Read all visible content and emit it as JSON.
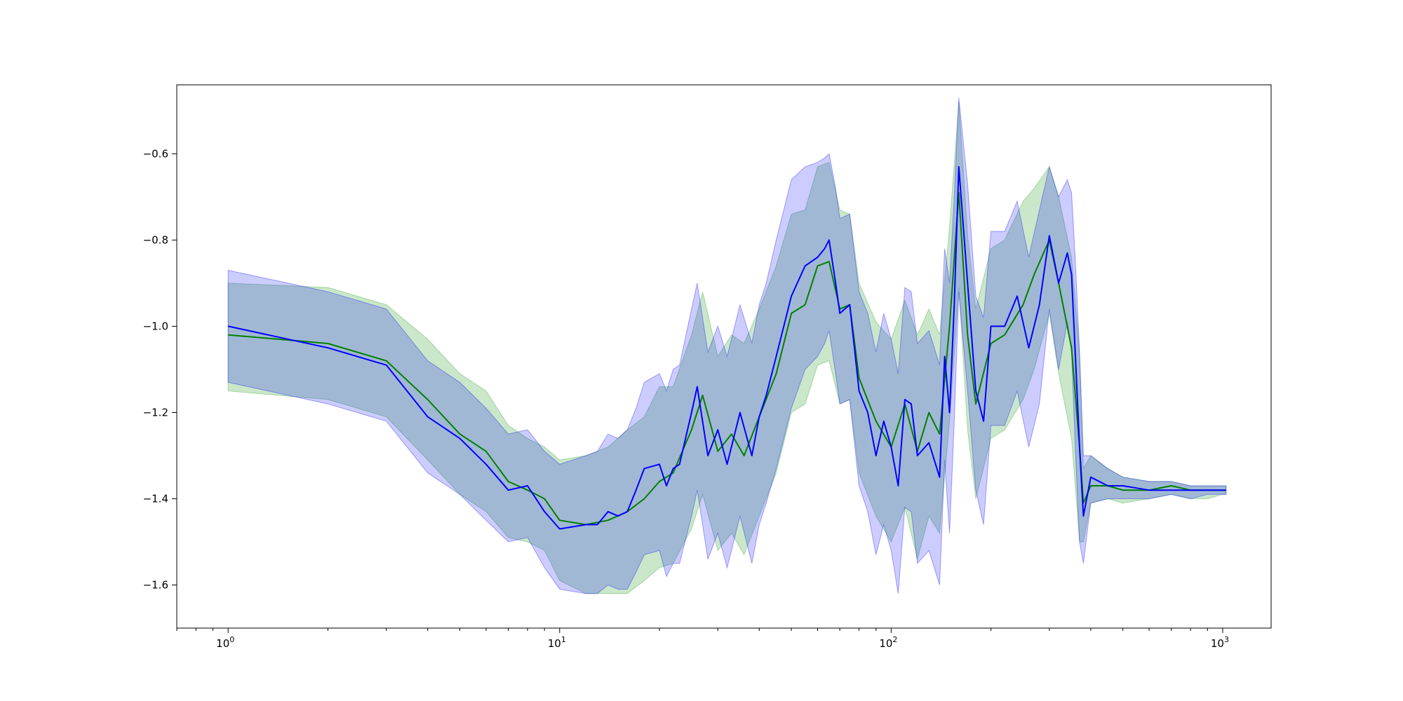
{
  "chart_data": {
    "type": "line",
    "title": "",
    "xlabel": "",
    "ylabel": "",
    "xscale": "log",
    "xlim": [
      0.7,
      1400
    ],
    "ylim": [
      -1.7,
      -0.44
    ],
    "grid": false,
    "legend": "none",
    "x_ticks": [
      {
        "value": 1,
        "base": "10",
        "exp": "0"
      },
      {
        "value": 10,
        "base": "10",
        "exp": "1"
      },
      {
        "value": 100,
        "base": "10",
        "exp": "2"
      },
      {
        "value": 1000,
        "base": "10",
        "exp": "3"
      }
    ],
    "y_ticks": [
      {
        "value": -1.6,
        "label": "−1.6"
      },
      {
        "value": -1.4,
        "label": "−1.4"
      },
      {
        "value": -1.2,
        "label": "−1.2"
      },
      {
        "value": -1.0,
        "label": "−1.0"
      },
      {
        "value": -0.8,
        "label": "−0.8"
      },
      {
        "value": -0.6,
        "label": "−0.6"
      }
    ],
    "series": [
      {
        "line_color": "#008000",
        "band_color": "#2ca02c",
        "band_opacity": 0.25,
        "x": [
          1,
          2,
          3,
          4,
          5,
          6,
          7,
          8,
          9,
          10,
          12,
          14,
          16,
          18,
          20,
          22,
          25,
          27,
          30,
          33,
          36,
          40,
          45,
          50,
          55,
          60,
          65,
          70,
          75,
          80,
          90,
          100,
          110,
          120,
          130,
          140,
          150,
          160,
          170,
          180,
          200,
          220,
          250,
          270,
          300,
          320,
          350,
          370,
          380,
          400,
          450,
          500,
          600,
          700,
          800,
          900,
          1000,
          1024
        ],
        "y": [
          -1.02,
          -1.04,
          -1.08,
          -1.17,
          -1.25,
          -1.29,
          -1.36,
          -1.38,
          -1.4,
          -1.45,
          -1.46,
          -1.45,
          -1.43,
          -1.4,
          -1.36,
          -1.34,
          -1.24,
          -1.16,
          -1.29,
          -1.25,
          -1.3,
          -1.21,
          -1.11,
          -0.97,
          -0.95,
          -0.86,
          -0.85,
          -0.96,
          -0.95,
          -1.12,
          -1.22,
          -1.28,
          -1.18,
          -1.29,
          -1.2,
          -1.25,
          -1.0,
          -0.69,
          -1.02,
          -1.18,
          -1.04,
          -1.02,
          -0.95,
          -0.88,
          -0.8,
          -0.9,
          -1.05,
          -1.28,
          -1.41,
          -1.37,
          -1.37,
          -1.38,
          -1.38,
          -1.37,
          -1.38,
          -1.38,
          -1.38,
          -1.38
        ],
        "upper": [
          -0.9,
          -0.91,
          -0.95,
          -1.03,
          -1.11,
          -1.15,
          -1.23,
          -1.26,
          -1.28,
          -1.31,
          -1.3,
          -1.28,
          -1.24,
          -1.21,
          -1.14,
          -1.14,
          -1.02,
          -0.92,
          -1.07,
          -1.02,
          -1.04,
          -0.96,
          -0.86,
          -0.74,
          -0.73,
          -0.63,
          -0.62,
          -0.73,
          -0.74,
          -0.9,
          -0.99,
          -1.03,
          -0.94,
          -1.02,
          -0.96,
          -1.02,
          -0.77,
          -0.48,
          -0.79,
          -0.96,
          -0.82,
          -0.8,
          -0.71,
          -0.68,
          -0.63,
          -0.7,
          -0.84,
          -1.06,
          -1.33,
          -1.3,
          -1.33,
          -1.35,
          -1.36,
          -1.36,
          -1.37,
          -1.37,
          -1.37,
          -1.37
        ],
        "lower": [
          -1.15,
          -1.17,
          -1.21,
          -1.31,
          -1.39,
          -1.43,
          -1.49,
          -1.5,
          -1.52,
          -1.59,
          -1.62,
          -1.62,
          -1.62,
          -1.59,
          -1.56,
          -1.55,
          -1.47,
          -1.39,
          -1.52,
          -1.48,
          -1.53,
          -1.44,
          -1.34,
          -1.2,
          -1.18,
          -1.09,
          -1.08,
          -1.18,
          -1.17,
          -1.34,
          -1.44,
          -1.5,
          -1.42,
          -1.54,
          -1.44,
          -1.48,
          -1.22,
          -0.91,
          -1.24,
          -1.4,
          -1.26,
          -1.24,
          -1.17,
          -1.1,
          -0.97,
          -1.11,
          -1.26,
          -1.5,
          -1.5,
          -1.41,
          -1.4,
          -1.41,
          -1.4,
          -1.39,
          -1.4,
          -1.4,
          -1.39,
          -1.39
        ]
      },
      {
        "line_color": "#0000ff",
        "band_color": "#0000ff",
        "band_opacity": 0.2,
        "x": [
          1,
          2,
          3,
          4,
          5,
          6,
          7,
          8,
          9,
          10,
          12,
          13,
          14,
          15,
          16,
          17,
          18,
          20,
          21,
          22,
          23,
          25,
          26,
          28,
          30,
          32,
          35,
          38,
          40,
          42,
          45,
          50,
          55,
          60,
          63,
          65,
          68,
          70,
          75,
          80,
          85,
          90,
          95,
          100,
          105,
          110,
          115,
          120,
          130,
          140,
          145,
          150,
          155,
          160,
          170,
          180,
          190,
          200,
          220,
          240,
          260,
          280,
          300,
          320,
          340,
          350,
          360,
          370,
          380,
          400,
          450,
          500,
          600,
          700,
          800,
          900,
          1000,
          1024
        ],
        "y": [
          -1.0,
          -1.05,
          -1.09,
          -1.21,
          -1.26,
          -1.32,
          -1.38,
          -1.37,
          -1.43,
          -1.47,
          -1.46,
          -1.46,
          -1.43,
          -1.44,
          -1.43,
          -1.38,
          -1.33,
          -1.32,
          -1.37,
          -1.33,
          -1.32,
          -1.2,
          -1.14,
          -1.3,
          -1.24,
          -1.32,
          -1.2,
          -1.3,
          -1.21,
          -1.16,
          -1.07,
          -0.93,
          -0.86,
          -0.84,
          -0.82,
          -0.8,
          -0.9,
          -0.97,
          -0.95,
          -1.15,
          -1.2,
          -1.3,
          -1.22,
          -1.28,
          -1.37,
          -1.17,
          -1.18,
          -1.3,
          -1.27,
          -1.35,
          -1.07,
          -1.2,
          -0.95,
          -0.63,
          -0.9,
          -1.15,
          -1.22,
          -1.0,
          -1.0,
          -0.93,
          -1.05,
          -0.95,
          -0.79,
          -0.9,
          -0.83,
          -0.88,
          -1.08,
          -1.28,
          -1.44,
          -1.35,
          -1.37,
          -1.37,
          -1.38,
          -1.38,
          -1.38,
          -1.38,
          -1.38,
          -1.38
        ],
        "upper": [
          -0.87,
          -0.92,
          -0.96,
          -1.08,
          -1.13,
          -1.19,
          -1.25,
          -1.24,
          -1.29,
          -1.32,
          -1.3,
          -1.29,
          -1.25,
          -1.26,
          -1.24,
          -1.19,
          -1.13,
          -1.11,
          -1.15,
          -1.1,
          -1.09,
          -0.96,
          -0.9,
          -1.06,
          -1.0,
          -1.07,
          -0.95,
          -1.04,
          -0.95,
          -0.9,
          -0.8,
          -0.66,
          -0.63,
          -0.62,
          -0.61,
          -0.6,
          -0.68,
          -0.75,
          -0.74,
          -0.92,
          -0.97,
          -1.06,
          -0.97,
          -1.03,
          -1.11,
          -0.91,
          -0.92,
          -1.04,
          -1.01,
          -1.09,
          -0.82,
          -0.9,
          -0.7,
          -0.47,
          -0.67,
          -0.93,
          -0.98,
          -0.78,
          -0.78,
          -0.71,
          -0.84,
          -0.73,
          -0.63,
          -0.7,
          -0.66,
          -0.69,
          -0.86,
          -1.06,
          -1.3,
          -1.3,
          -1.33,
          -1.35,
          -1.36,
          -1.36,
          -1.37,
          -1.37,
          -1.37,
          -1.37
        ],
        "lower": [
          -1.13,
          -1.18,
          -1.22,
          -1.34,
          -1.39,
          -1.45,
          -1.5,
          -1.49,
          -1.56,
          -1.61,
          -1.62,
          -1.62,
          -1.6,
          -1.61,
          -1.61,
          -1.57,
          -1.53,
          -1.52,
          -1.58,
          -1.55,
          -1.55,
          -1.44,
          -1.38,
          -1.54,
          -1.48,
          -1.56,
          -1.44,
          -1.55,
          -1.46,
          -1.41,
          -1.33,
          -1.19,
          -1.1,
          -1.07,
          -1.04,
          -1.01,
          -1.11,
          -1.18,
          -1.17,
          -1.37,
          -1.43,
          -1.53,
          -1.46,
          -1.52,
          -1.62,
          -1.42,
          -1.43,
          -1.55,
          -1.52,
          -1.6,
          -1.31,
          -1.48,
          -1.22,
          -0.92,
          -1.15,
          -1.38,
          -1.46,
          -1.23,
          -1.23,
          -1.15,
          -1.28,
          -1.18,
          -0.96,
          -1.1,
          -0.99,
          -1.06,
          -1.3,
          -1.5,
          -1.55,
          -1.41,
          -1.4,
          -1.4,
          -1.4,
          -1.39,
          -1.4,
          -1.39,
          -1.39,
          -1.39
        ]
      }
    ]
  }
}
